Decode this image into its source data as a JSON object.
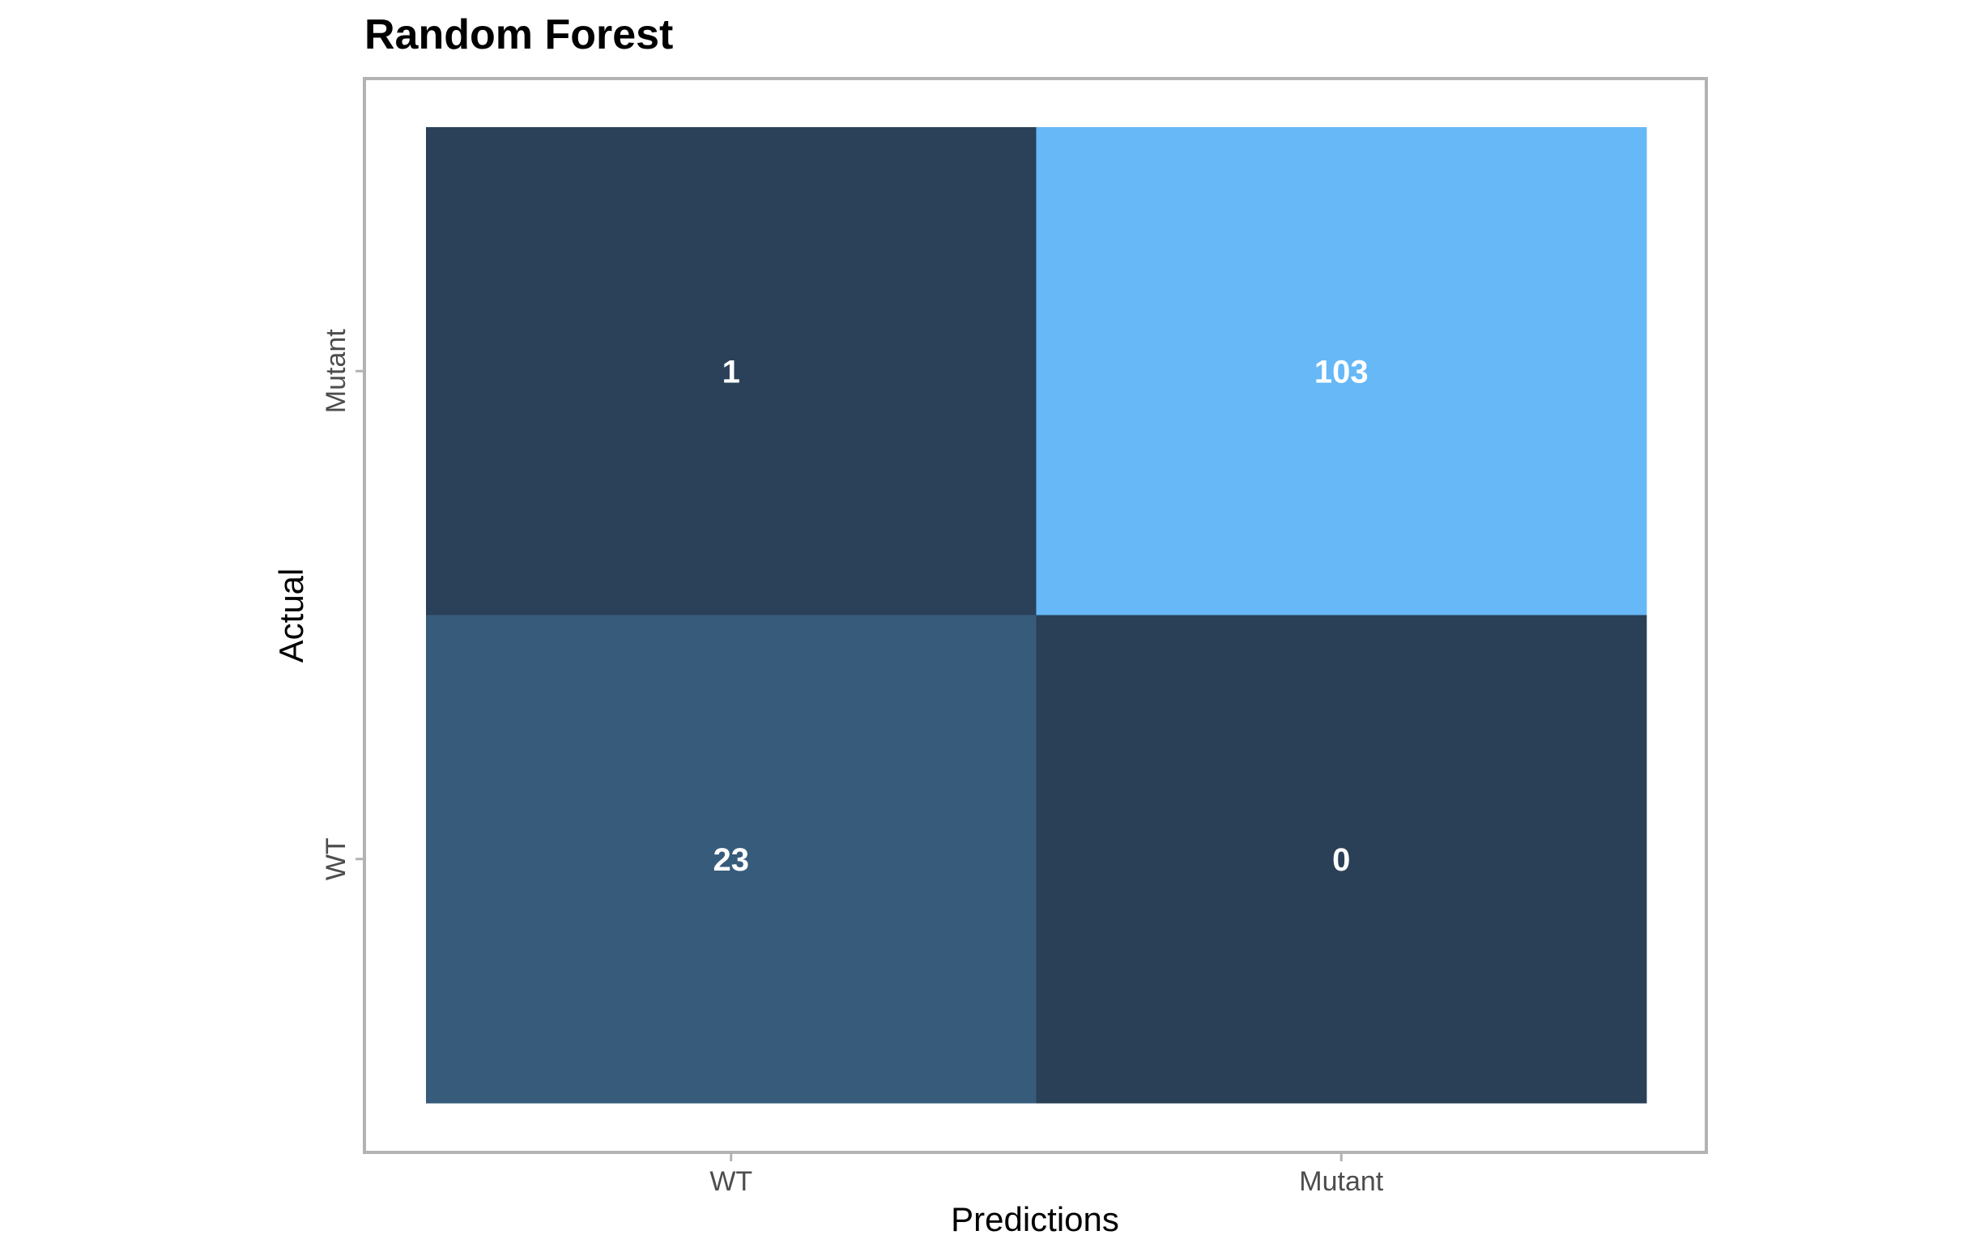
{
  "chart_data": {
    "type": "heatmap",
    "title": "Random Forest",
    "xlabel": "Predictions",
    "ylabel": "Actual",
    "x_categories": [
      "WT",
      "Mutant"
    ],
    "y_categories": [
      "WT",
      "Mutant"
    ],
    "values": [
      {
        "x": "WT",
        "y": "Mutant",
        "value": 1
      },
      {
        "x": "Mutant",
        "y": "Mutant",
        "value": 103
      },
      {
        "x": "WT",
        "y": "WT",
        "value": 23
      },
      {
        "x": "Mutant",
        "y": "WT",
        "value": 0
      }
    ],
    "color_low": "#2a4057",
    "color_high": "#66b8f7",
    "panel_border_color": "#b3b3b3",
    "label_color": "#ffffff",
    "grid": false,
    "legend": "none"
  }
}
